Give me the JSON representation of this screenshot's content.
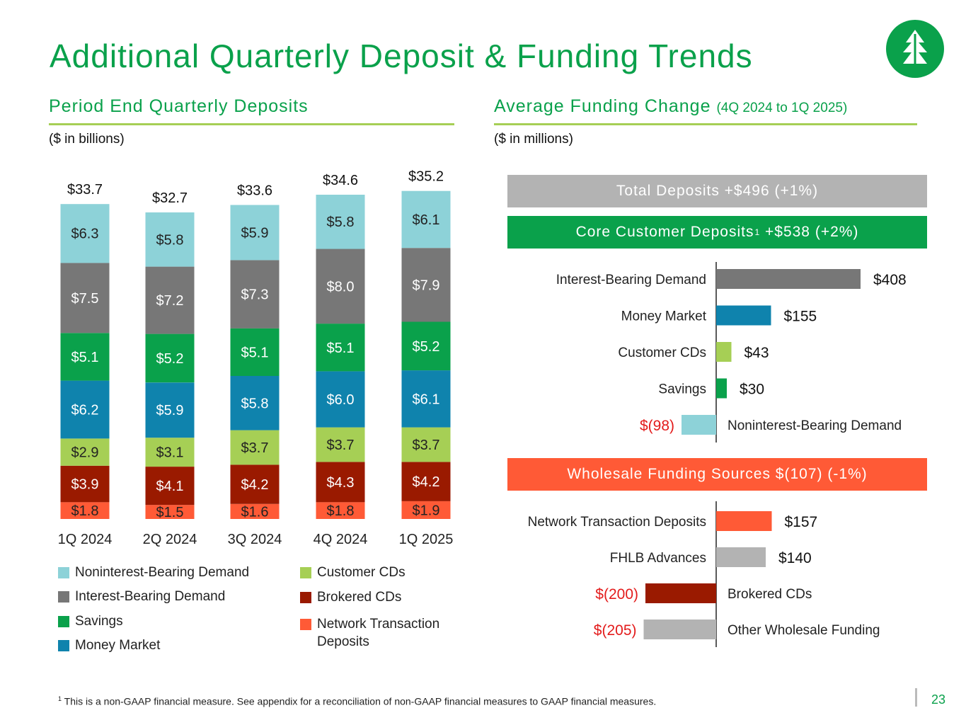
{
  "title": "Additional Quarterly Deposit & Funding Trends",
  "colors": {
    "accent": "#0aa14b",
    "rule": "#a6cf55",
    "noninterest_bearing": "#8dd2d8",
    "interest_bearing": "#777777",
    "savings": "#0aa14b",
    "money_market": "#0f83ad",
    "customer_cds": "#a6cf55",
    "brokered_cds": "#9a1a00",
    "network": "#ff5a36",
    "wholesale_gray": "#b3b3b3",
    "negative": "#e31b1b"
  },
  "logo": {
    "icon": "tree-logo-icon"
  },
  "left": {
    "title": "Period End Quarterly Deposits",
    "units": "($ in billions)"
  },
  "right": {
    "title": "Average Funding Change",
    "subtitle": "(4Q 2024 to 1Q 2025)",
    "units": "($ in millions)",
    "banner_total": "Total Deposits +$496 (+1%)",
    "banner_core_main": "Core Customer Deposits",
    "banner_core_sup": "1",
    "banner_core_rest": " +$538 (+2%)",
    "banner_wholesale": "Wholesale Funding Sources $(107) (-1%)"
  },
  "legend": [
    {
      "label": "Noninterest-Bearing Demand",
      "color": "#8dd2d8"
    },
    {
      "label": "Interest-Bearing Demand",
      "color": "#777777"
    },
    {
      "label": "Savings",
      "color": "#0aa14b"
    },
    {
      "label": "Money Market",
      "color": "#0f83ad"
    },
    {
      "label": "Customer CDs",
      "color": "#a6cf55"
    },
    {
      "label": "Brokered CDs",
      "color": "#9a1a00"
    },
    {
      "label": "Network Transaction",
      "color": "#ff5a36",
      "label2": "Deposits"
    }
  ],
  "chart_data": [
    {
      "type": "bar",
      "stacked": true,
      "title": "Period End Quarterly Deposits",
      "ylabel": "($ in billions)",
      "categories": [
        "1Q 2024",
        "2Q 2024",
        "3Q 2024",
        "4Q 2024",
        "1Q 2025"
      ],
      "totals": [
        33.7,
        32.7,
        33.6,
        34.6,
        35.2
      ],
      "total_labels": [
        "$33.7",
        "$32.7",
        "$33.6",
        "$34.6",
        "$35.2"
      ],
      "series": [
        {
          "name": "Network Transaction Deposits",
          "color": "#ff5a36",
          "text_color": "#222222",
          "values": [
            1.8,
            1.5,
            1.6,
            1.8,
            1.9
          ],
          "labels": [
            "$1.8",
            "$1.5",
            "$1.6",
            "$1.8",
            "$1.9"
          ]
        },
        {
          "name": "Brokered CDs",
          "color": "#9a1a00",
          "text_color": "#ffffff",
          "values": [
            3.9,
            4.1,
            4.2,
            4.3,
            4.2
          ],
          "labels": [
            "$3.9",
            "$4.1",
            "$4.2",
            "$4.3",
            "$4.2"
          ]
        },
        {
          "name": "Customer CDs",
          "color": "#a6cf55",
          "text_color": "#222222",
          "values": [
            2.9,
            3.1,
            3.7,
            3.7,
            3.7
          ],
          "labels": [
            "$2.9",
            "$3.1",
            "$3.7",
            "$3.7",
            "$3.7"
          ]
        },
        {
          "name": "Money Market",
          "color": "#0f83ad",
          "text_color": "#ffffff",
          "values": [
            6.2,
            5.9,
            5.8,
            6.0,
            6.1
          ],
          "labels": [
            "$6.2",
            "$5.9",
            "$5.8",
            "$6.0",
            "$6.1"
          ]
        },
        {
          "name": "Savings",
          "color": "#0aa14b",
          "text_color": "#ffffff",
          "values": [
            5.1,
            5.2,
            5.1,
            5.1,
            5.2
          ],
          "labels": [
            "$5.1",
            "$5.2",
            "$5.1",
            "$5.1",
            "$5.2"
          ]
        },
        {
          "name": "Interest-Bearing Demand",
          "color": "#777777",
          "text_color": "#ffffff",
          "values": [
            7.5,
            7.2,
            7.3,
            8.0,
            7.9
          ],
          "labels": [
            "$7.5",
            "$7.2",
            "$7.3",
            "$8.0",
            "$7.9"
          ]
        },
        {
          "name": "Noninterest-Bearing Demand",
          "color": "#8dd2d8",
          "text_color": "#222222",
          "values": [
            6.3,
            5.8,
            5.9,
            5.8,
            6.1
          ],
          "labels": [
            "$6.3",
            "$5.8",
            "$5.9",
            "$5.8",
            "$6.1"
          ]
        }
      ]
    },
    {
      "type": "bar",
      "orientation": "horizontal",
      "title": "Core Customer Deposits",
      "xlabel": "($ in millions)",
      "categories": [
        "Interest-Bearing Demand",
        "Money Market",
        "Customer CDs",
        "Savings",
        "Noninterest-Bearing Demand"
      ],
      "values": [
        408,
        155,
        43,
        30,
        -98
      ],
      "labels": [
        "$408",
        "$155",
        "$43",
        "$30",
        "$(98)"
      ],
      "colors": [
        "#777777",
        "#0f83ad",
        "#a6cf55",
        "#0aa14b",
        "#8dd2d8"
      ]
    },
    {
      "type": "bar",
      "orientation": "horizontal",
      "title": "Wholesale Funding Sources",
      "xlabel": "($ in millions)",
      "categories": [
        "Network Transaction Deposits",
        "FHLB Advances",
        "Brokered CDs",
        "Other Wholesale Funding"
      ],
      "values": [
        157,
        140,
        -200,
        -205
      ],
      "labels": [
        "$157",
        "$140",
        "$(200)",
        "$(205)"
      ],
      "colors": [
        "#ff5a36",
        "#b3b3b3",
        "#9a1a00",
        "#b3b3b3"
      ]
    }
  ],
  "footnote": {
    "sup": "1",
    "text": " This is a non-GAAP financial measure. See appendix for a reconciliation of non-GAAP financial measures to GAAP financial measures."
  },
  "page_number": "23"
}
